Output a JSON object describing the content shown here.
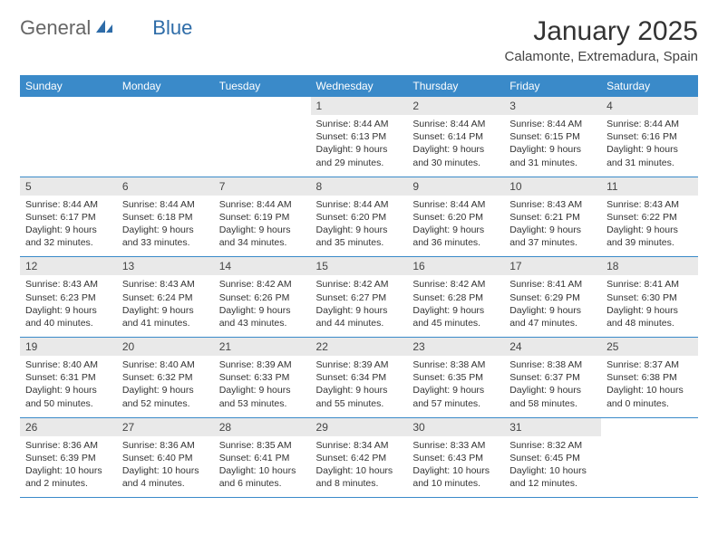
{
  "brand": {
    "part1": "General",
    "part2": "Blue"
  },
  "title": "January 2025",
  "location": "Calamonte, Extremadura, Spain",
  "colors": {
    "header_bg": "#3a8ac9",
    "header_text": "#ffffff",
    "daynum_bg": "#e9e9e9",
    "rule": "#3a8ac9",
    "brand_blue": "#2e6ca8"
  },
  "weekdays": [
    "Sunday",
    "Monday",
    "Tuesday",
    "Wednesday",
    "Thursday",
    "Friday",
    "Saturday"
  ],
  "weeks": [
    [
      null,
      null,
      null,
      {
        "n": "1",
        "sr": "8:44 AM",
        "ss": "6:13 PM",
        "dl": "9 hours and 29 minutes."
      },
      {
        "n": "2",
        "sr": "8:44 AM",
        "ss": "6:14 PM",
        "dl": "9 hours and 30 minutes."
      },
      {
        "n": "3",
        "sr": "8:44 AM",
        "ss": "6:15 PM",
        "dl": "9 hours and 31 minutes."
      },
      {
        "n": "4",
        "sr": "8:44 AM",
        "ss": "6:16 PM",
        "dl": "9 hours and 31 minutes."
      }
    ],
    [
      {
        "n": "5",
        "sr": "8:44 AM",
        "ss": "6:17 PM",
        "dl": "9 hours and 32 minutes."
      },
      {
        "n": "6",
        "sr": "8:44 AM",
        "ss": "6:18 PM",
        "dl": "9 hours and 33 minutes."
      },
      {
        "n": "7",
        "sr": "8:44 AM",
        "ss": "6:19 PM",
        "dl": "9 hours and 34 minutes."
      },
      {
        "n": "8",
        "sr": "8:44 AM",
        "ss": "6:20 PM",
        "dl": "9 hours and 35 minutes."
      },
      {
        "n": "9",
        "sr": "8:44 AM",
        "ss": "6:20 PM",
        "dl": "9 hours and 36 minutes."
      },
      {
        "n": "10",
        "sr": "8:43 AM",
        "ss": "6:21 PM",
        "dl": "9 hours and 37 minutes."
      },
      {
        "n": "11",
        "sr": "8:43 AM",
        "ss": "6:22 PM",
        "dl": "9 hours and 39 minutes."
      }
    ],
    [
      {
        "n": "12",
        "sr": "8:43 AM",
        "ss": "6:23 PM",
        "dl": "9 hours and 40 minutes."
      },
      {
        "n": "13",
        "sr": "8:43 AM",
        "ss": "6:24 PM",
        "dl": "9 hours and 41 minutes."
      },
      {
        "n": "14",
        "sr": "8:42 AM",
        "ss": "6:26 PM",
        "dl": "9 hours and 43 minutes."
      },
      {
        "n": "15",
        "sr": "8:42 AM",
        "ss": "6:27 PM",
        "dl": "9 hours and 44 minutes."
      },
      {
        "n": "16",
        "sr": "8:42 AM",
        "ss": "6:28 PM",
        "dl": "9 hours and 45 minutes."
      },
      {
        "n": "17",
        "sr": "8:41 AM",
        "ss": "6:29 PM",
        "dl": "9 hours and 47 minutes."
      },
      {
        "n": "18",
        "sr": "8:41 AM",
        "ss": "6:30 PM",
        "dl": "9 hours and 48 minutes."
      }
    ],
    [
      {
        "n": "19",
        "sr": "8:40 AM",
        "ss": "6:31 PM",
        "dl": "9 hours and 50 minutes."
      },
      {
        "n": "20",
        "sr": "8:40 AM",
        "ss": "6:32 PM",
        "dl": "9 hours and 52 minutes."
      },
      {
        "n": "21",
        "sr": "8:39 AM",
        "ss": "6:33 PM",
        "dl": "9 hours and 53 minutes."
      },
      {
        "n": "22",
        "sr": "8:39 AM",
        "ss": "6:34 PM",
        "dl": "9 hours and 55 minutes."
      },
      {
        "n": "23",
        "sr": "8:38 AM",
        "ss": "6:35 PM",
        "dl": "9 hours and 57 minutes."
      },
      {
        "n": "24",
        "sr": "8:38 AM",
        "ss": "6:37 PM",
        "dl": "9 hours and 58 minutes."
      },
      {
        "n": "25",
        "sr": "8:37 AM",
        "ss": "6:38 PM",
        "dl": "10 hours and 0 minutes."
      }
    ],
    [
      {
        "n": "26",
        "sr": "8:36 AM",
        "ss": "6:39 PM",
        "dl": "10 hours and 2 minutes."
      },
      {
        "n": "27",
        "sr": "8:36 AM",
        "ss": "6:40 PM",
        "dl": "10 hours and 4 minutes."
      },
      {
        "n": "28",
        "sr": "8:35 AM",
        "ss": "6:41 PM",
        "dl": "10 hours and 6 minutes."
      },
      {
        "n": "29",
        "sr": "8:34 AM",
        "ss": "6:42 PM",
        "dl": "10 hours and 8 minutes."
      },
      {
        "n": "30",
        "sr": "8:33 AM",
        "ss": "6:43 PM",
        "dl": "10 hours and 10 minutes."
      },
      {
        "n": "31",
        "sr": "8:32 AM",
        "ss": "6:45 PM",
        "dl": "10 hours and 12 minutes."
      },
      null
    ]
  ],
  "labels": {
    "sunrise": "Sunrise:",
    "sunset": "Sunset:",
    "daylight": "Daylight:"
  }
}
